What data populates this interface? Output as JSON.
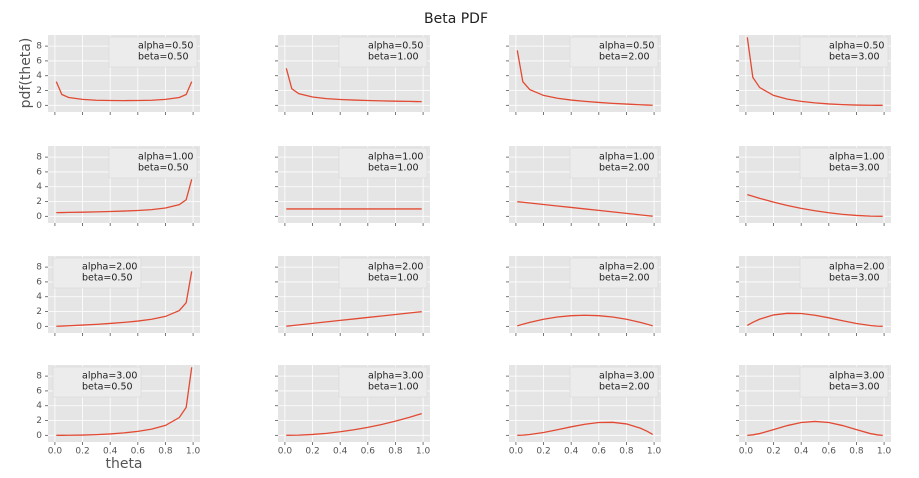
{
  "figure": {
    "title": "Beta PDF",
    "xlabel": "theta",
    "ylabel": "pdf(theta)",
    "xlim": [
      -0.05,
      1.05
    ],
    "ylim": [
      -0.9,
      9.5
    ],
    "xticks": [
      {
        "value": 0,
        "label": "0.0"
      },
      {
        "value": 0.2,
        "label": "0.2"
      },
      {
        "value": 0.4,
        "label": "0.4"
      },
      {
        "value": 0.6,
        "label": "0.6"
      },
      {
        "value": 0.8,
        "label": "0.8"
      },
      {
        "value": 1,
        "label": "1.0"
      }
    ],
    "yticks": [
      0,
      2,
      4,
      6,
      8
    ],
    "grid": true
  },
  "chart_data": [
    {
      "type": "line",
      "legend": [
        "alpha=0.50",
        "beta=0.50"
      ],
      "legend_loc": "upper right",
      "x": [
        0.01,
        0.05,
        0.1,
        0.2,
        0.3,
        0.4,
        0.5,
        0.6,
        0.7,
        0.8,
        0.9,
        0.95,
        0.99
      ],
      "series": [
        {
          "color": "#e24a33",
          "values": [
            3.2,
            1.46,
            1.06,
            0.8,
            0.69,
            0.65,
            0.64,
            0.65,
            0.69,
            0.8,
            1.06,
            1.46,
            3.2
          ]
        }
      ]
    },
    {
      "type": "line",
      "legend": [
        "alpha=0.50",
        "beta=1.00"
      ],
      "legend_loc": "upper right",
      "x": [
        0.01,
        0.05,
        0.1,
        0.2,
        0.3,
        0.4,
        0.5,
        0.6,
        0.7,
        0.8,
        0.9,
        0.95,
        0.99
      ],
      "series": [
        {
          "color": "#e24a33",
          "values": [
            5.0,
            2.24,
            1.58,
            1.12,
            0.91,
            0.79,
            0.71,
            0.65,
            0.6,
            0.56,
            0.53,
            0.51,
            0.5
          ]
        }
      ]
    },
    {
      "type": "line",
      "legend": [
        "alpha=0.50",
        "beta=2.00"
      ],
      "legend_loc": "upper right",
      "x": [
        0.01,
        0.05,
        0.1,
        0.2,
        0.3,
        0.4,
        0.5,
        0.6,
        0.7,
        0.8,
        0.9,
        0.95,
        0.99
      ],
      "series": [
        {
          "color": "#e24a33",
          "values": [
            7.43,
            3.19,
            2.13,
            1.34,
            0.96,
            0.71,
            0.53,
            0.39,
            0.27,
            0.17,
            0.08,
            0.04,
            0.01
          ]
        }
      ]
    },
    {
      "type": "line",
      "legend": [
        "alpha=0.50",
        "beta=3.00"
      ],
      "legend_loc": "upper right",
      "x": [
        0.01,
        0.05,
        0.1,
        0.2,
        0.3,
        0.4,
        0.5,
        0.6,
        0.7,
        0.8,
        0.9,
        0.95,
        0.99
      ],
      "series": [
        {
          "color": "#e24a33",
          "values": [
            9.19,
            3.78,
            2.4,
            1.34,
            0.84,
            0.53,
            0.33,
            0.19,
            0.1,
            0.04,
            0.01,
            0,
            0
          ]
        }
      ]
    },
    {
      "type": "line",
      "legend": [
        "alpha=1.00",
        "beta=0.50"
      ],
      "legend_loc": "upper right",
      "x": [
        0.01,
        0.05,
        0.1,
        0.2,
        0.3,
        0.4,
        0.5,
        0.6,
        0.7,
        0.8,
        0.9,
        0.95,
        0.99
      ],
      "series": [
        {
          "color": "#e24a33",
          "values": [
            0.5,
            0.51,
            0.53,
            0.56,
            0.6,
            0.65,
            0.71,
            0.79,
            0.91,
            1.12,
            1.58,
            2.24,
            5.0
          ]
        }
      ]
    },
    {
      "type": "line",
      "legend": [
        "alpha=1.00",
        "beta=1.00"
      ],
      "legend_loc": "upper right",
      "x": [
        0.01,
        0.05,
        0.1,
        0.2,
        0.3,
        0.4,
        0.5,
        0.6,
        0.7,
        0.8,
        0.9,
        0.95,
        0.99
      ],
      "series": [
        {
          "color": "#e24a33",
          "values": [
            1,
            1,
            1,
            1,
            1,
            1,
            1,
            1,
            1,
            1,
            1,
            1,
            1
          ]
        }
      ]
    },
    {
      "type": "line",
      "legend": [
        "alpha=1.00",
        "beta=2.00"
      ],
      "legend_loc": "upper right",
      "x": [
        0.01,
        0.05,
        0.1,
        0.2,
        0.3,
        0.4,
        0.5,
        0.6,
        0.7,
        0.8,
        0.9,
        0.95,
        0.99
      ],
      "series": [
        {
          "color": "#e24a33",
          "values": [
            1.98,
            1.9,
            1.8,
            1.6,
            1.4,
            1.2,
            1.0,
            0.8,
            0.6,
            0.4,
            0.2,
            0.1,
            0.02
          ]
        }
      ]
    },
    {
      "type": "line",
      "legend": [
        "alpha=1.00",
        "beta=3.00"
      ],
      "legend_loc": "upper right",
      "x": [
        0.01,
        0.05,
        0.1,
        0.2,
        0.3,
        0.4,
        0.5,
        0.6,
        0.7,
        0.8,
        0.9,
        0.95,
        0.99
      ],
      "series": [
        {
          "color": "#e24a33",
          "values": [
            2.94,
            2.71,
            2.43,
            1.92,
            1.47,
            1.08,
            0.75,
            0.48,
            0.27,
            0.12,
            0.03,
            0.01,
            0
          ]
        }
      ]
    },
    {
      "type": "line",
      "legend": [
        "alpha=2.00",
        "beta=0.50"
      ],
      "legend_loc": "upper left",
      "x": [
        0.01,
        0.05,
        0.1,
        0.2,
        0.3,
        0.4,
        0.5,
        0.6,
        0.7,
        0.8,
        0.9,
        0.95,
        0.99
      ],
      "series": [
        {
          "color": "#e24a33",
          "values": [
            0.01,
            0.04,
            0.08,
            0.17,
            0.27,
            0.39,
            0.53,
            0.71,
            0.96,
            1.34,
            2.13,
            3.19,
            7.43
          ]
        }
      ]
    },
    {
      "type": "line",
      "legend": [
        "alpha=2.00",
        "beta=1.00"
      ],
      "legend_loc": "upper right",
      "x": [
        0.01,
        0.05,
        0.1,
        0.2,
        0.3,
        0.4,
        0.5,
        0.6,
        0.7,
        0.8,
        0.9,
        0.95,
        0.99
      ],
      "series": [
        {
          "color": "#e24a33",
          "values": [
            0.02,
            0.1,
            0.2,
            0.4,
            0.6,
            0.8,
            1.0,
            1.2,
            1.4,
            1.6,
            1.8,
            1.9,
            1.98
          ]
        }
      ]
    },
    {
      "type": "line",
      "legend": [
        "alpha=2.00",
        "beta=2.00"
      ],
      "legend_loc": "upper right",
      "x": [
        0.01,
        0.05,
        0.1,
        0.2,
        0.3,
        0.4,
        0.5,
        0.6,
        0.7,
        0.8,
        0.9,
        0.95,
        0.99
      ],
      "series": [
        {
          "color": "#e24a33",
          "values": [
            0.06,
            0.29,
            0.54,
            0.96,
            1.26,
            1.44,
            1.5,
            1.44,
            1.26,
            0.96,
            0.54,
            0.29,
            0.06
          ]
        }
      ]
    },
    {
      "type": "line",
      "legend": [
        "alpha=2.00",
        "beta=3.00"
      ],
      "legend_loc": "upper right",
      "x": [
        0.01,
        0.05,
        0.1,
        0.2,
        0.3,
        0.4,
        0.5,
        0.6,
        0.7,
        0.8,
        0.9,
        0.95,
        0.99
      ],
      "series": [
        {
          "color": "#e24a33",
          "values": [
            0.12,
            0.54,
            0.97,
            1.54,
            1.76,
            1.73,
            1.5,
            1.15,
            0.76,
            0.38,
            0.11,
            0.03,
            0
          ]
        }
      ]
    },
    {
      "type": "line",
      "legend": [
        "alpha=3.00",
        "beta=0.50"
      ],
      "legend_loc": "upper left",
      "x": [
        0.01,
        0.05,
        0.1,
        0.2,
        0.3,
        0.4,
        0.5,
        0.6,
        0.7,
        0.8,
        0.9,
        0.95,
        0.99
      ],
      "series": [
        {
          "color": "#e24a33",
          "values": [
            0,
            0,
            0.01,
            0.04,
            0.1,
            0.19,
            0.33,
            0.53,
            0.84,
            1.34,
            2.4,
            3.78,
            9.19
          ]
        }
      ]
    },
    {
      "type": "line",
      "legend": [
        "alpha=3.00",
        "beta=1.00"
      ],
      "legend_loc": "upper right",
      "x": [
        0.01,
        0.05,
        0.1,
        0.2,
        0.3,
        0.4,
        0.5,
        0.6,
        0.7,
        0.8,
        0.9,
        0.95,
        0.99
      ],
      "series": [
        {
          "color": "#e24a33",
          "values": [
            0,
            0.01,
            0.03,
            0.12,
            0.27,
            0.48,
            0.75,
            1.08,
            1.47,
            1.92,
            2.43,
            2.71,
            2.94
          ]
        }
      ]
    },
    {
      "type": "line",
      "legend": [
        "alpha=3.00",
        "beta=2.00"
      ],
      "legend_loc": "upper right",
      "x": [
        0.01,
        0.05,
        0.1,
        0.2,
        0.3,
        0.4,
        0.5,
        0.6,
        0.7,
        0.8,
        0.9,
        0.95,
        0.99
      ],
      "series": [
        {
          "color": "#e24a33",
          "values": [
            0,
            0.03,
            0.11,
            0.38,
            0.76,
            1.15,
            1.5,
            1.73,
            1.76,
            1.54,
            0.97,
            0.54,
            0.12
          ]
        }
      ]
    },
    {
      "type": "line",
      "legend": [
        "alpha=3.00",
        "beta=3.00"
      ],
      "legend_loc": "upper right",
      "x": [
        0.01,
        0.05,
        0.1,
        0.2,
        0.3,
        0.4,
        0.5,
        0.6,
        0.7,
        0.8,
        0.9,
        0.95,
        0.99
      ],
      "series": [
        {
          "color": "#e24a33",
          "values": [
            0,
            0.07,
            0.24,
            0.77,
            1.32,
            1.73,
            1.88,
            1.73,
            1.32,
            0.77,
            0.24,
            0.07,
            0
          ]
        }
      ]
    }
  ]
}
